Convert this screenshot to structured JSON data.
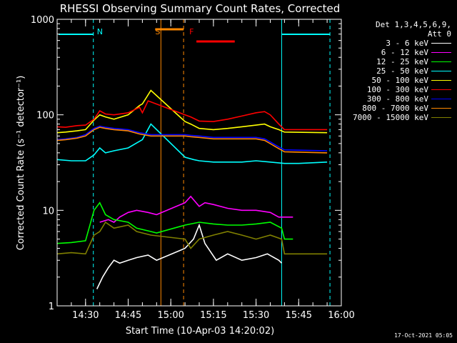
{
  "chart_data": {
    "type": "line",
    "title": "RHESSI Observing Summary Count Rates, Corrected",
    "xlabel": "Start Time (10-Apr-03 14:20:02)",
    "ylabel": "Corrected Count Rate (s⁻¹ detector⁻¹)",
    "yscale": "log",
    "ylim": [
      1,
      1000
    ],
    "xlim_min": [
      0,
      100
    ],
    "x_ticks": [
      {
        "t": 10,
        "label": "14:30"
      },
      {
        "t": 25,
        "label": "14:45"
      },
      {
        "t": 40,
        "label": "15:00"
      },
      {
        "t": 55,
        "label": "15:15"
      },
      {
        "t": 70,
        "label": "15:30"
      },
      {
        "t": 85,
        "label": "15:45"
      },
      {
        "t": 100,
        "label": "16:00"
      }
    ],
    "y_ticks": [
      {
        "v": 1,
        "label": "1"
      },
      {
        "v": 10,
        "label": "10"
      },
      {
        "v": 100,
        "label": "100"
      },
      {
        "v": 1000,
        "label": "1000"
      }
    ],
    "legend_header": [
      "Det 1,3,4,5,6,9,",
      "Att 0"
    ],
    "series": [
      {
        "name": "3 - 6 keV",
        "color": "#ffffff",
        "x": [
          14,
          16,
          18,
          20,
          22,
          25,
          28,
          32,
          35,
          45,
          48,
          50,
          52,
          56,
          60,
          65,
          70,
          74,
          78,
          79
        ],
        "y": [
          1.5,
          2.0,
          2.5,
          3.0,
          2.8,
          3.0,
          3.2,
          3.4,
          3.0,
          4.0,
          5.0,
          7.0,
          4.5,
          3.0,
          3.5,
          3.0,
          3.2,
          3.5,
          3.0,
          2.8
        ]
      },
      {
        "name": "6 - 12 keV",
        "color": "#ff00ff",
        "x": [
          15,
          18,
          20,
          22,
          25,
          28,
          32,
          35,
          45,
          47,
          50,
          52,
          55,
          60,
          65,
          70,
          75,
          78,
          83
        ],
        "y": [
          7.5,
          8.0,
          7.5,
          8.5,
          9.5,
          10.0,
          9.5,
          9.0,
          12.0,
          14.0,
          11.0,
          12.0,
          11.5,
          10.5,
          10.0,
          10.0,
          9.5,
          8.5,
          8.5
        ]
      },
      {
        "name": "12 - 25 keV",
        "color": "#00ff00",
        "x": [
          0,
          5,
          10,
          13,
          15,
          17,
          20,
          25,
          28,
          33,
          35,
          45,
          50,
          55,
          60,
          65,
          70,
          75,
          79,
          80,
          83
        ],
        "y": [
          4.5,
          4.6,
          4.8,
          10.0,
          12.0,
          9.0,
          8.0,
          7.5,
          6.5,
          6.0,
          5.8,
          7.0,
          7.5,
          7.2,
          7.0,
          7.0,
          7.2,
          7.5,
          6.5,
          5.0,
          5.0
        ]
      },
      {
        "name": "25 - 50 keV",
        "color": "#00ffff",
        "x": [
          0,
          5,
          10,
          13,
          15,
          17,
          20,
          25,
          30,
          33,
          45,
          48,
          50,
          55,
          60,
          65,
          70,
          75,
          80,
          85,
          95
        ],
        "y": [
          34,
          33,
          33,
          38,
          45,
          40,
          42,
          45,
          55,
          80,
          36,
          34,
          33,
          32,
          32,
          32,
          33,
          32,
          31,
          31,
          32
        ]
      },
      {
        "name": "50 - 100 keV",
        "color": "#ffff00",
        "x": [
          0,
          3,
          7,
          10,
          13,
          15,
          17,
          20,
          25,
          29,
          30,
          33,
          45,
          47,
          50,
          55,
          60,
          65,
          70,
          73,
          75,
          78,
          80,
          95
        ],
        "y": [
          65,
          66,
          68,
          70,
          88,
          100,
          95,
          90,
          100,
          125,
          130,
          180,
          85,
          80,
          72,
          70,
          72,
          75,
          78,
          80,
          75,
          70,
          66,
          65
        ]
      },
      {
        "name": "100 - 300 keV",
        "color": "#ff0000",
        "x": [
          0,
          3,
          7,
          10,
          13,
          15,
          17,
          20,
          25,
          29,
          30,
          32,
          45,
          47,
          50,
          55,
          60,
          65,
          70,
          73,
          75,
          78,
          80,
          95
        ],
        "y": [
          75,
          74,
          77,
          78,
          90,
          110,
          102,
          100,
          105,
          120,
          105,
          140,
          100,
          95,
          86,
          85,
          90,
          97,
          105,
          108,
          100,
          80,
          70,
          70
        ]
      },
      {
        "name": "300 - 800 keV",
        "color": "#0000ff",
        "x": [
          0,
          3,
          7,
          10,
          13,
          15,
          17,
          20,
          25,
          29,
          33,
          45,
          47,
          50,
          55,
          60,
          65,
          70,
          73,
          75,
          77,
          80,
          95
        ],
        "y": [
          55,
          56,
          58,
          62,
          72,
          76,
          74,
          72,
          70,
          65,
          62,
          62,
          61,
          60,
          58,
          58,
          58,
          58,
          56,
          52,
          48,
          43,
          42
        ]
      },
      {
        "name": "800 - 7000 keV",
        "color": "#ff8800",
        "x": [
          0,
          3,
          7,
          10,
          13,
          15,
          17,
          20,
          25,
          29,
          33,
          45,
          47,
          50,
          55,
          60,
          65,
          70,
          73,
          75,
          77,
          80,
          95
        ],
        "y": [
          54,
          55,
          57,
          60,
          70,
          74,
          72,
          70,
          68,
          63,
          60,
          60,
          59,
          58,
          56,
          56,
          56,
          56,
          54,
          50,
          46,
          41,
          40
        ]
      },
      {
        "name": "7000 - 15000 keV",
        "color": "#808000",
        "x": [
          0,
          5,
          10,
          13,
          15,
          17,
          20,
          25,
          28,
          33,
          45,
          47,
          50,
          55,
          60,
          65,
          70,
          75,
          79,
          80,
          95
        ],
        "y": [
          3.5,
          3.6,
          3.5,
          5.5,
          6.0,
          7.5,
          6.5,
          7.0,
          6.0,
          5.5,
          5.0,
          4.0,
          5.0,
          5.5,
          6.0,
          5.5,
          5.0,
          5.5,
          5.0,
          3.5,
          3.5
        ]
      }
    ],
    "annotations": [
      {
        "label": "N",
        "color": "#00ffff",
        "x": 13.5,
        "kind": "night"
      },
      {
        "label": "S",
        "color": "#ff8800",
        "x": 34,
        "kind": "saa"
      },
      {
        "label": "F",
        "color": "#ff0000",
        "x": 46,
        "kind": "flare"
      }
    ],
    "timestamp": "17-Oct-2021 05:05"
  }
}
